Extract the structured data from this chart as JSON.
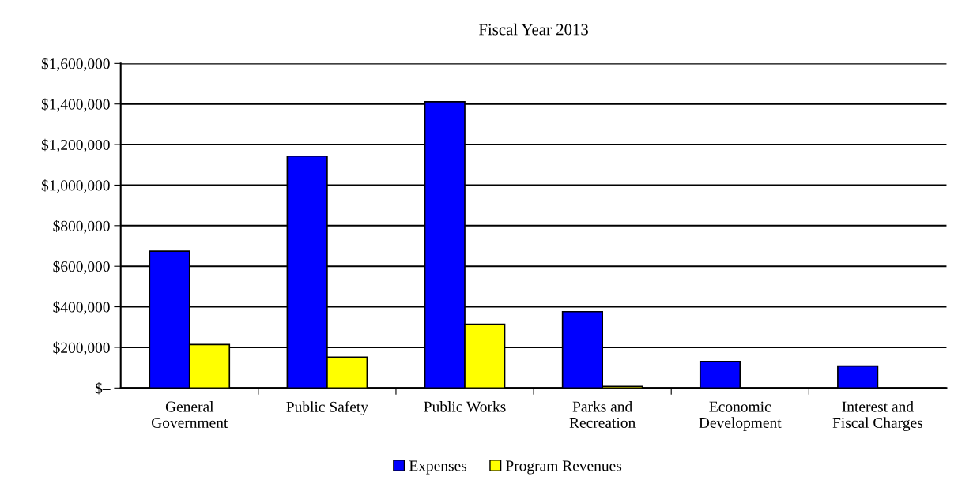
{
  "chart_data": {
    "type": "bar",
    "title": "Fiscal Year 2013",
    "categories": [
      "General\nGovernment",
      "Public Safety",
      "Public Works",
      "Parks and\nRecreation",
      "Economic\nDevelopment",
      "Interest and\nFiscal Charges"
    ],
    "series": [
      {
        "name": "Expenses",
        "color": "#0000ff",
        "values": [
          674000,
          1143000,
          1411000,
          376000,
          130000,
          108000
        ]
      },
      {
        "name": "Program Revenues",
        "color": "#ffff00",
        "values": [
          214000,
          152000,
          314000,
          8000,
          null,
          null
        ]
      }
    ],
    "ylim": [
      0,
      1600000
    ],
    "yticks": [
      {
        "value": 0,
        "label": "$–"
      },
      {
        "value": 200000,
        "label": "$200,000"
      },
      {
        "value": 400000,
        "label": "$400,000"
      },
      {
        "value": 600000,
        "label": "$600,000"
      },
      {
        "value": 800000,
        "label": "$800,000"
      },
      {
        "value": 1000000,
        "label": "$1,000,000"
      },
      {
        "value": 1200000,
        "label": "$1,200,000"
      },
      {
        "value": 1400000,
        "label": "$1,400,000"
      },
      {
        "value": 1600000,
        "label": "$1,600,000"
      }
    ],
    "grid": "y",
    "legend": "bottom"
  }
}
